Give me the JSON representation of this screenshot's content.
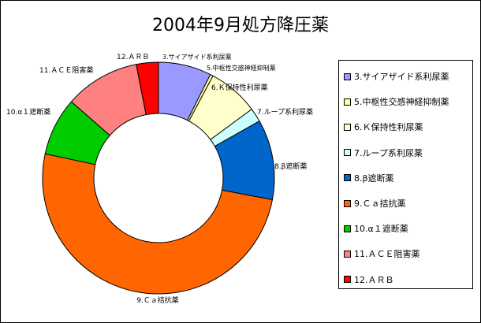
{
  "chart_data": {
    "type": "pie",
    "donut": true,
    "title": "2004年9月処方降圧薬",
    "legend_position": "right",
    "slices": [
      {
        "label": "3.サイアザイド系利尿薬",
        "legend": "3.サイアザイド系利尿薬",
        "value": 7.2,
        "color": "#9999ff"
      },
      {
        "label": "5.中枢性交感神経抑制薬",
        "legend": "5.中枢性交感神経抑制薬",
        "value": 0.4,
        "color": "#ffff99"
      },
      {
        "label": "6.Ｋ保持性利尿薬",
        "legend": "6.Ｋ保持性利尿薬",
        "value": 6.9,
        "color": "#ffffcc"
      },
      {
        "label": "7.ループ系利尿薬",
        "legend": "7.ループ系利尿薬",
        "value": 1.9,
        "color": "#ccffff"
      },
      {
        "label": "8.β遮断薬",
        "legend": "8.β遮断薬",
        "value": 10.9,
        "color": "#0066cc"
      },
      {
        "label": "9.Ｃａ拮抗薬",
        "legend": "9.Ｃａ拮抗薬",
        "value": 49.1,
        "color": "#ff6600"
      },
      {
        "label": "10.α１遮断薬",
        "legend": "10.α１遮断薬",
        "value": 7.9,
        "color": "#00cc00"
      },
      {
        "label": "11.ＡＣＥ阻害薬",
        "legend": "11.ＡＣＥ阻害薬",
        "value": 10.2,
        "color": "#ff8080"
      },
      {
        "label": "12.ＡＲＢ",
        "legend": "12.ＡＲＢ",
        "value": 3.0,
        "color": "#ff0000"
      }
    ]
  }
}
